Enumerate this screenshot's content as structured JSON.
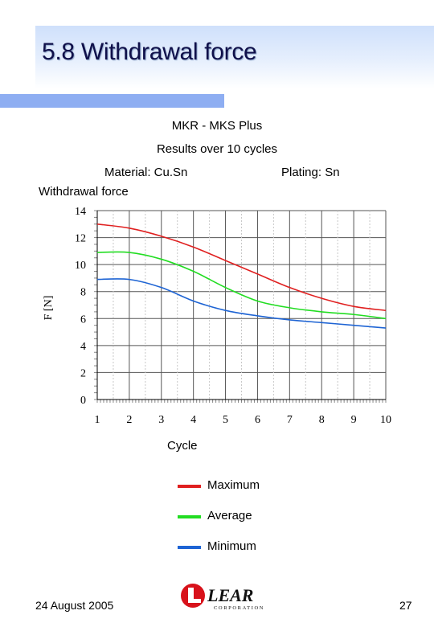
{
  "slide": {
    "title": "5.8 Withdrawal force",
    "footer_date": "24 August 2005",
    "page_number": "27",
    "logo_text": "LEAR",
    "logo_subtext": "CORPORATION"
  },
  "colors": {
    "header_band": "#cfe0fb",
    "accent_bar": "#8eaef2",
    "title_text": "#10104a"
  },
  "chart_data": {
    "type": "line",
    "title": "MKR - MKS  Plus",
    "subtitle": "Results over 10 cycles",
    "material": "Material: Cu.Sn",
    "plating": "Plating: Sn",
    "series_label": "Withdrawal force",
    "xlabel": "Cycle",
    "ylabel": "F [N]",
    "x": [
      1,
      2,
      3,
      4,
      5,
      6,
      7,
      8,
      9,
      10
    ],
    "xlim": [
      1,
      10
    ],
    "ylim": [
      0,
      14
    ],
    "yticks": [
      0,
      2,
      4,
      6,
      8,
      10,
      12,
      14
    ],
    "grid": true,
    "legend_position": "bottom",
    "series": [
      {
        "name": "Maximum",
        "color": "#e02020",
        "values": [
          13.0,
          12.7,
          12.1,
          11.3,
          10.3,
          9.3,
          8.3,
          7.5,
          6.9,
          6.6
        ]
      },
      {
        "name": "Average",
        "color": "#22dd22",
        "values": [
          10.9,
          10.9,
          10.4,
          9.5,
          8.3,
          7.3,
          6.8,
          6.5,
          6.3,
          6.0
        ]
      },
      {
        "name": "Minimum",
        "color": "#1e64d4",
        "values": [
          8.9,
          8.9,
          8.3,
          7.3,
          6.6,
          6.2,
          5.9,
          5.7,
          5.5,
          5.3
        ]
      }
    ]
  }
}
